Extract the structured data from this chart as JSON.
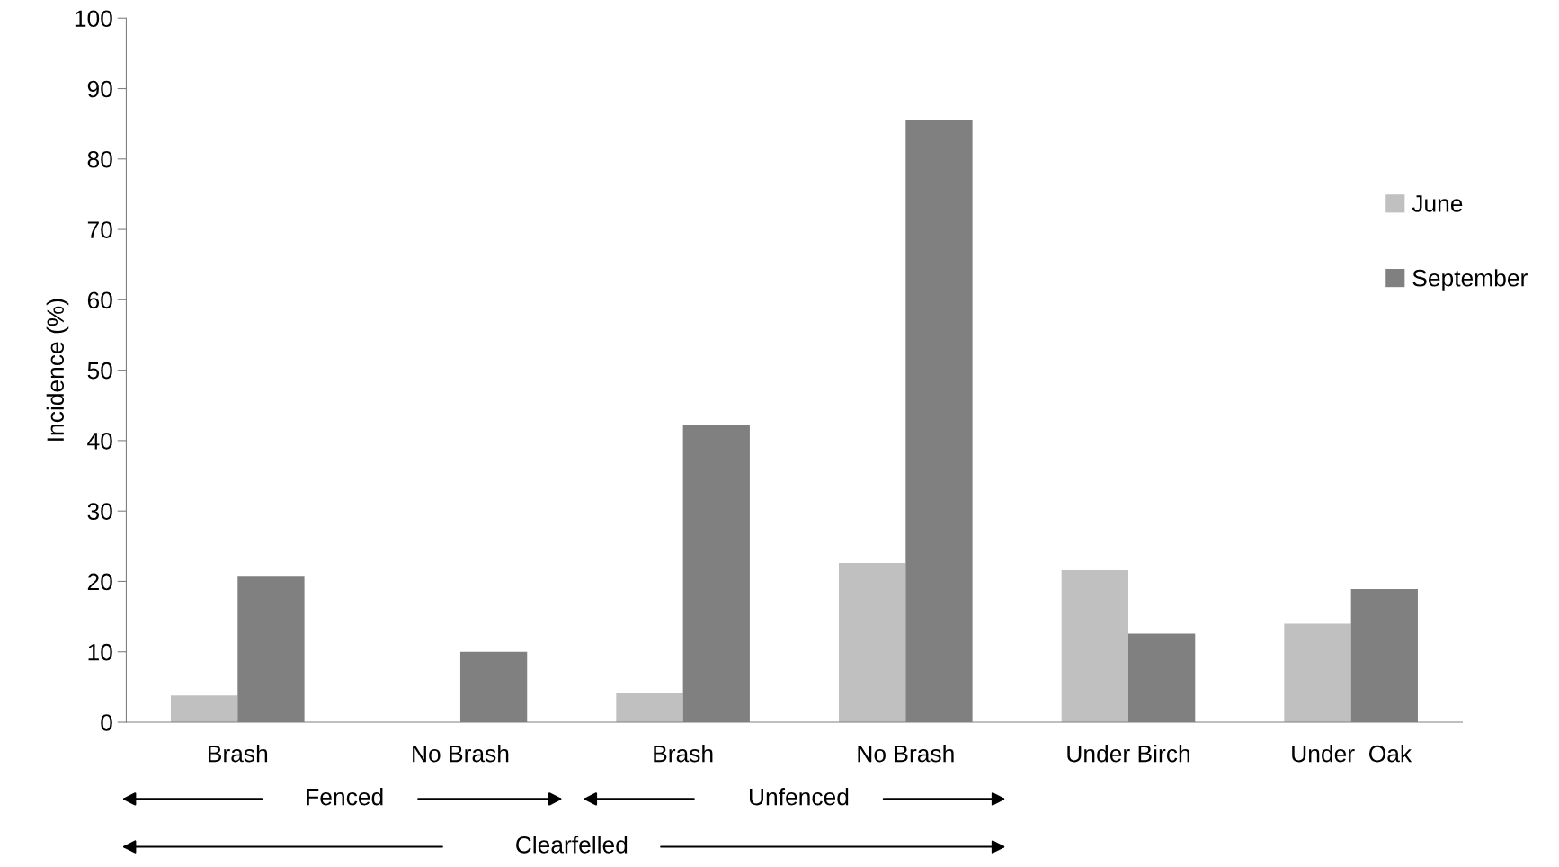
{
  "chart_data": {
    "type": "bar",
    "ylabel": "Incidence (%)",
    "categories": [
      "Brash",
      "No Brash",
      "Brash",
      "No Brash",
      "Under Birch",
      "Under  Oak"
    ],
    "series": [
      {
        "name": "June",
        "color": "#c0c0c0",
        "values": [
          3.8,
          0,
          4.1,
          22.6,
          21.6,
          14.0
        ]
      },
      {
        "name": "September",
        "color": "#808080",
        "values": [
          20.8,
          10.0,
          42.2,
          85.6,
          12.6,
          18.9
        ]
      }
    ],
    "ylim": [
      0,
      100
    ],
    "yticks": [
      0,
      10,
      20,
      30,
      40,
      50,
      60,
      70,
      80,
      90,
      100
    ],
    "grid": false,
    "legend": "right",
    "annotations": [
      "Fenced",
      "Unfenced",
      "Clearfelled"
    ]
  }
}
